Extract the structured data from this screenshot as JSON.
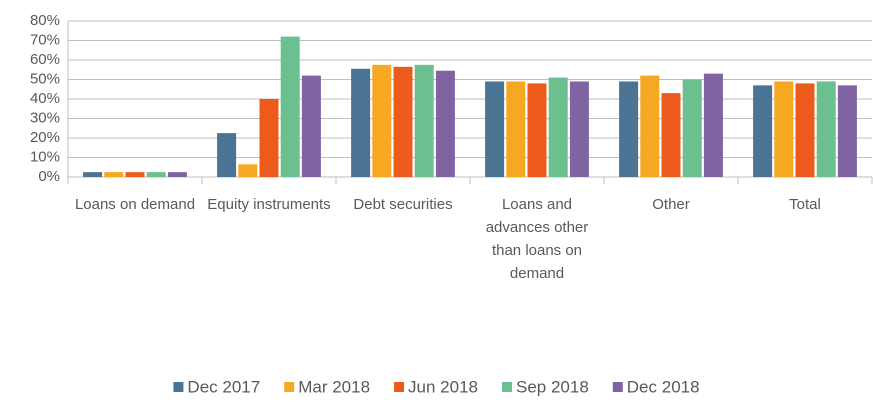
{
  "chart_data": {
    "type": "bar",
    "categories": [
      "Loans on demand",
      "Equity instruments",
      "Debt securities",
      "Loans and advances other than loans on demand",
      "Other",
      "Total"
    ],
    "series": [
      {
        "name": "Dec 2017",
        "color": "#4a7394",
        "values": [
          2.5,
          22.5,
          55.5,
          49,
          49,
          47
        ]
      },
      {
        "name": "Mar 2018",
        "color": "#f7a823",
        "values": [
          2.5,
          6.5,
          57.5,
          49,
          52,
          49
        ]
      },
      {
        "name": "Jun 2018",
        "color": "#ec5b1b",
        "values": [
          2.5,
          40,
          56.5,
          48,
          43,
          48
        ]
      },
      {
        "name": "Sep 2018",
        "color": "#6cbf8e",
        "values": [
          2.5,
          72,
          57.5,
          51,
          50,
          49
        ]
      },
      {
        "name": "Dec 2018",
        "color": "#8064a2",
        "values": [
          2.5,
          52,
          54.5,
          49,
          53,
          47
        ]
      }
    ],
    "ylim": [
      0,
      80
    ],
    "yticks": [
      {
        "value": 0,
        "label": "0%"
      },
      {
        "value": 10,
        "label": "10%"
      },
      {
        "value": 20,
        "label": "20%"
      },
      {
        "value": 30,
        "label": "30%"
      },
      {
        "value": 40,
        "label": "40%"
      },
      {
        "value": 50,
        "label": "50%"
      },
      {
        "value": 60,
        "label": "60%"
      },
      {
        "value": 70,
        "label": "70%"
      },
      {
        "value": 80,
        "label": "80%"
      }
    ],
    "grid": true,
    "legend": "bottom"
  }
}
